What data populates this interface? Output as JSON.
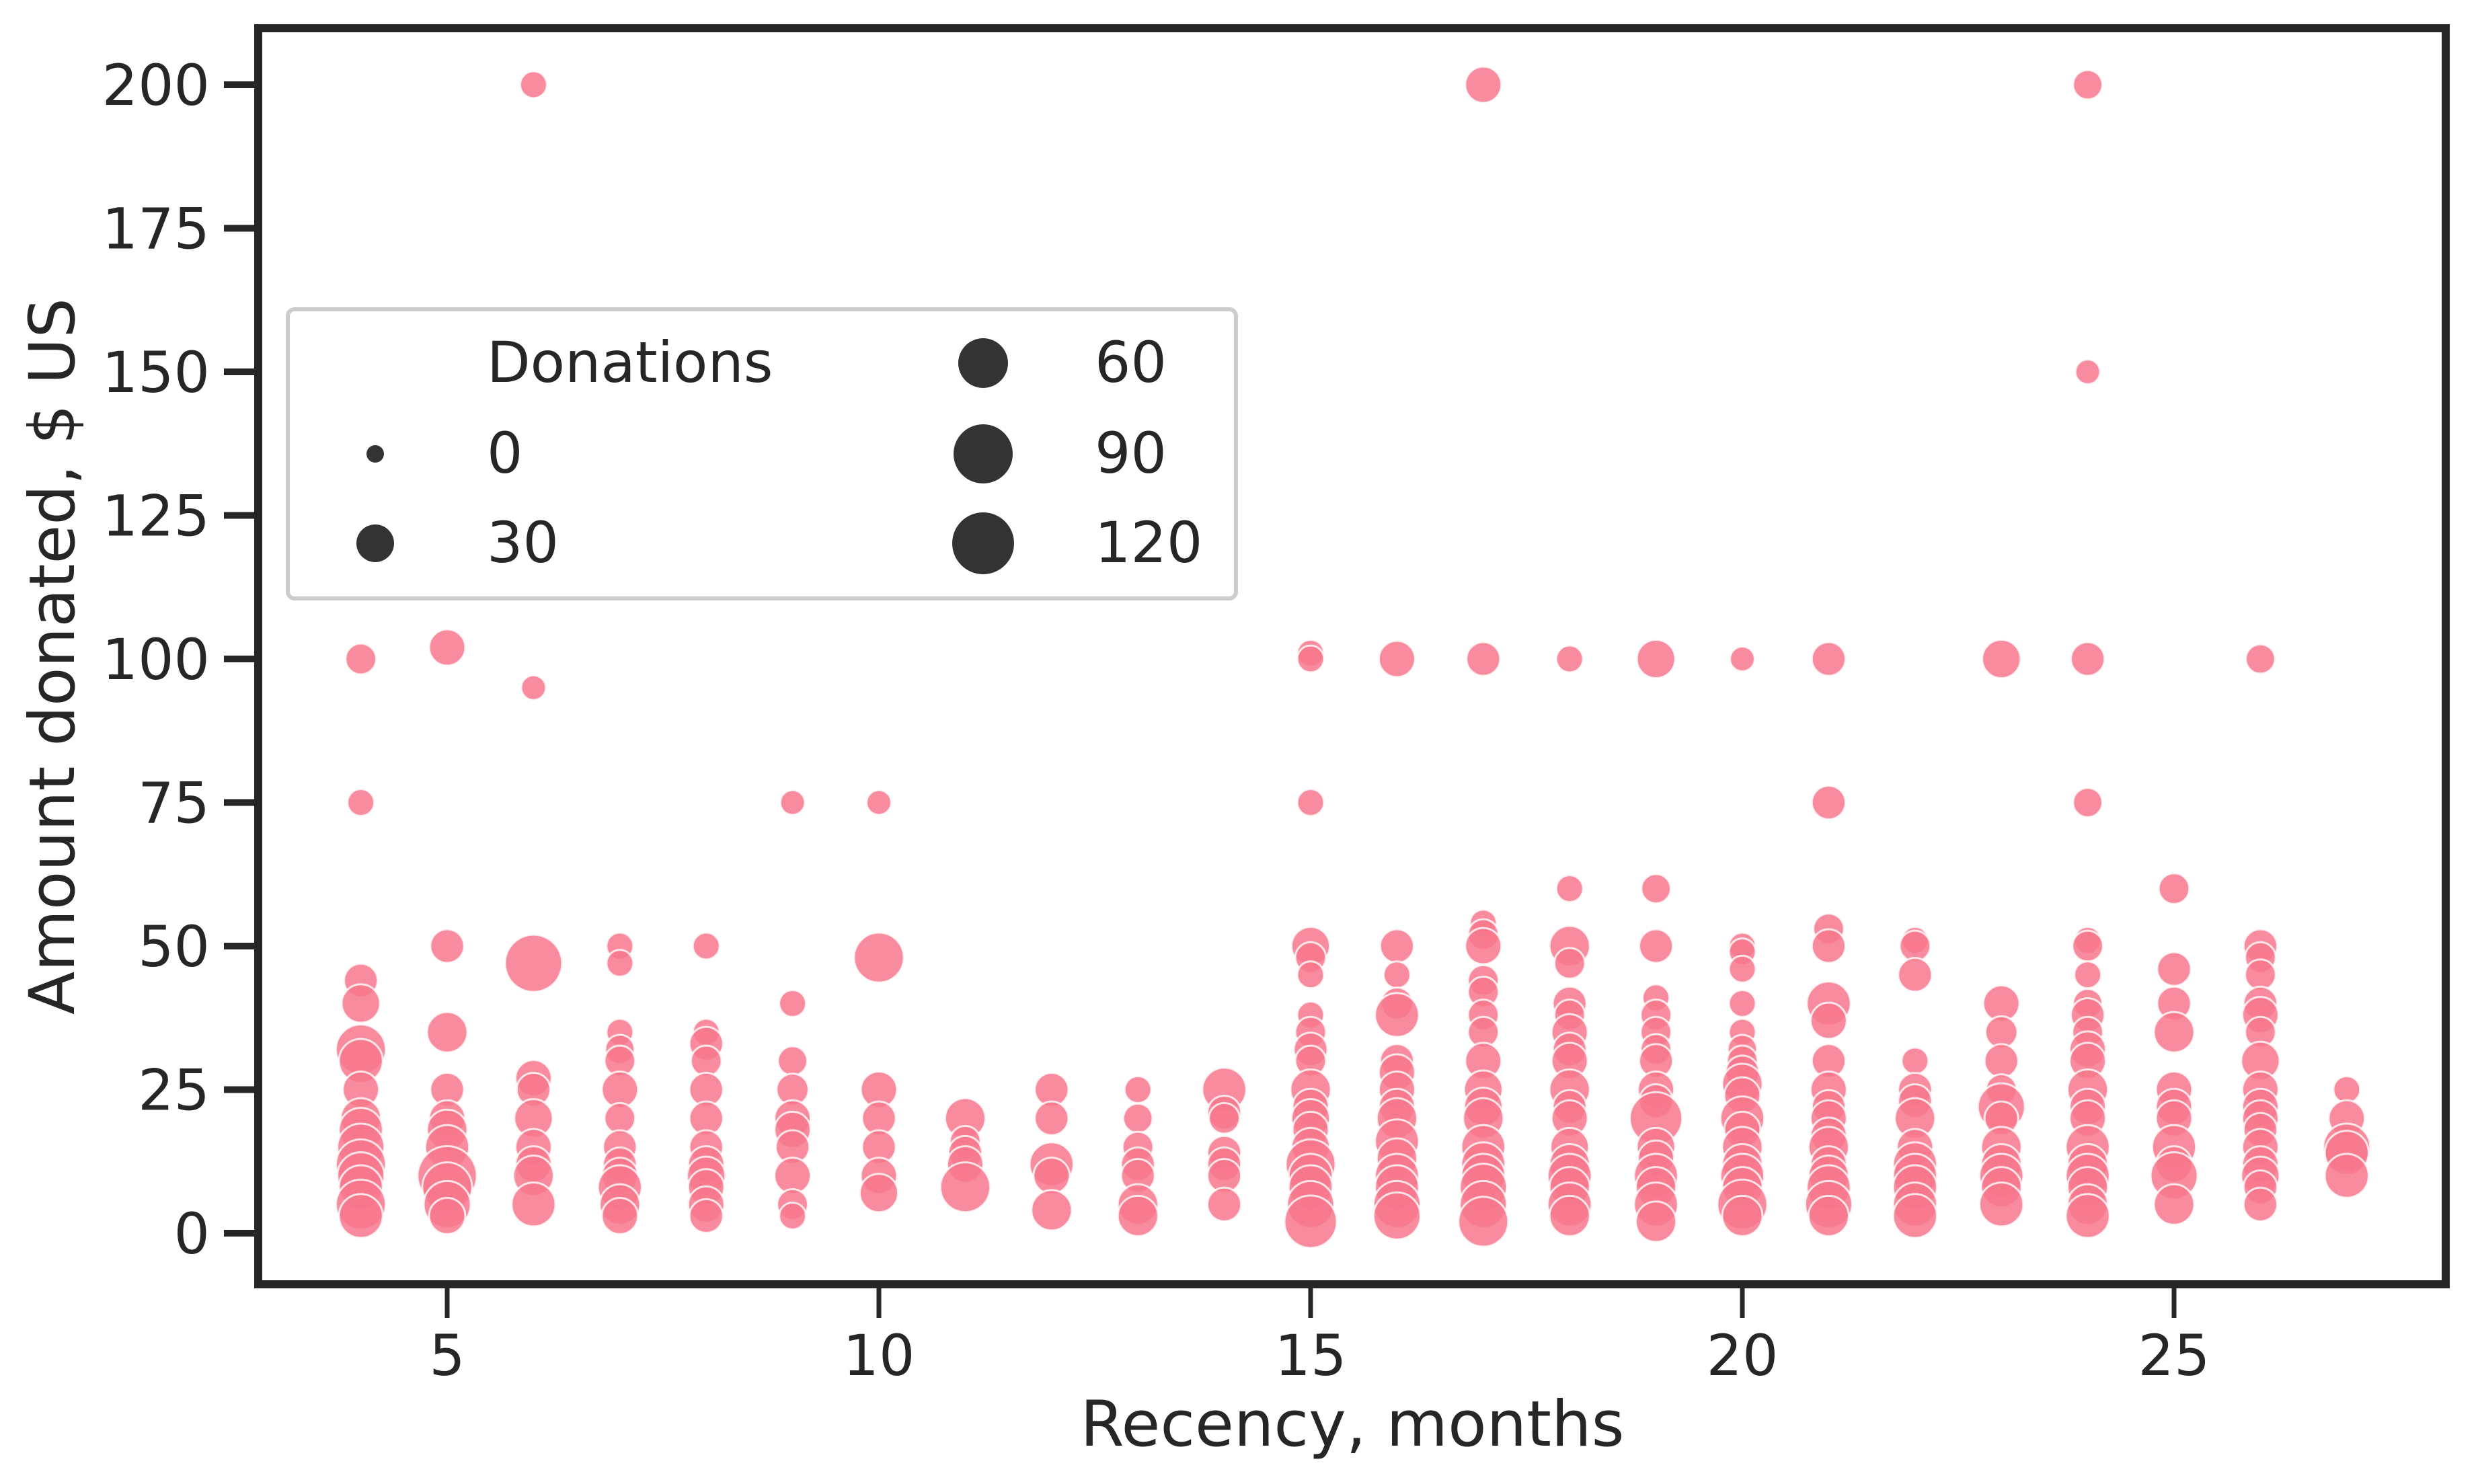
{
  "chart_data": {
    "type": "scatter",
    "title": "",
    "xlabel": "Recency, months",
    "ylabel": "Amount donated, $ US",
    "xlim": [
      2.8,
      28.2
    ],
    "ylim": [
      -8.5,
      210
    ],
    "xticks": [
      5,
      10,
      15,
      20,
      25
    ],
    "yticks": [
      0,
      25,
      50,
      75,
      100,
      125,
      150,
      175,
      200
    ],
    "grid": false,
    "point_color": "#f7778c",
    "point_edge_color": "#ffffff",
    "size_variable": "Donations",
    "legend": {
      "title": "Donations",
      "position": "upper left (inside, mid-height)",
      "columns": 2,
      "entries": [
        {
          "label": "0",
          "size": 0
        },
        {
          "label": "30",
          "size": 30
        },
        {
          "label": "60",
          "size": 60
        },
        {
          "label": "90",
          "size": 90
        },
        {
          "label": "120",
          "size": 120
        }
      ]
    },
    "columns": [
      "recency_months",
      "amount_usd",
      "donations"
    ],
    "points": [
      [
        4,
        100,
        10
      ],
      [
        4,
        75,
        5
      ],
      [
        4,
        44,
        15
      ],
      [
        4,
        40,
        25
      ],
      [
        4,
        32,
        60
      ],
      [
        4,
        30,
        40
      ],
      [
        4,
        25,
        20
      ],
      [
        4,
        20,
        30
      ],
      [
        4,
        18,
        40
      ],
      [
        4,
        15,
        50
      ],
      [
        4,
        12,
        60
      ],
      [
        4,
        10,
        50
      ],
      [
        4,
        8,
        40
      ],
      [
        4,
        5,
        60
      ],
      [
        4,
        3,
        40
      ],
      [
        5,
        102,
        20
      ],
      [
        5,
        50,
        15
      ],
      [
        5,
        35,
        30
      ],
      [
        5,
        25,
        15
      ],
      [
        5,
        20,
        20
      ],
      [
        5,
        18,
        30
      ],
      [
        5,
        15,
        40
      ],
      [
        5,
        10,
        100
      ],
      [
        5,
        8,
        60
      ],
      [
        5,
        5,
        50
      ],
      [
        5,
        3,
        20
      ],
      [
        6,
        200,
        5
      ],
      [
        6,
        95,
        3
      ],
      [
        6,
        47,
        90
      ],
      [
        6,
        27,
        20
      ],
      [
        6,
        25,
        15
      ],
      [
        6,
        20,
        25
      ],
      [
        6,
        15,
        20
      ],
      [
        6,
        12,
        20
      ],
      [
        6,
        10,
        30
      ],
      [
        6,
        5,
        40
      ],
      [
        7,
        50,
        5
      ],
      [
        7,
        47,
        5
      ],
      [
        7,
        35,
        5
      ],
      [
        7,
        32,
        8
      ],
      [
        7,
        30,
        10
      ],
      [
        7,
        25,
        20
      ],
      [
        7,
        20,
        10
      ],
      [
        7,
        15,
        15
      ],
      [
        7,
        12,
        15
      ],
      [
        7,
        10,
        20
      ],
      [
        7,
        8,
        40
      ],
      [
        7,
        5,
        30
      ],
      [
        7,
        3,
        20
      ],
      [
        8,
        50,
        5
      ],
      [
        8,
        35,
        5
      ],
      [
        8,
        33,
        15
      ],
      [
        8,
        30,
        10
      ],
      [
        8,
        25,
        15
      ],
      [
        8,
        20,
        15
      ],
      [
        8,
        15,
        15
      ],
      [
        8,
        12,
        20
      ],
      [
        8,
        10,
        25
      ],
      [
        8,
        8,
        20
      ],
      [
        8,
        5,
        20
      ],
      [
        8,
        3,
        15
      ],
      [
        9,
        75,
        3
      ],
      [
        9,
        40,
        5
      ],
      [
        9,
        30,
        8
      ],
      [
        9,
        25,
        12
      ],
      [
        9,
        20,
        20
      ],
      [
        9,
        18,
        20
      ],
      [
        9,
        15,
        15
      ],
      [
        9,
        10,
        20
      ],
      [
        9,
        5,
        10
      ],
      [
        9,
        3,
        5
      ],
      [
        10,
        75,
        3
      ],
      [
        10,
        48,
        60
      ],
      [
        10,
        25,
        20
      ],
      [
        10,
        20,
        15
      ],
      [
        10,
        15,
        15
      ],
      [
        10,
        10,
        20
      ],
      [
        10,
        7,
        25
      ],
      [
        11,
        20,
        30
      ],
      [
        11,
        16,
        10
      ],
      [
        11,
        14,
        15
      ],
      [
        11,
        12,
        20
      ],
      [
        11,
        8,
        60
      ],
      [
        12,
        25,
        15
      ],
      [
        12,
        20,
        15
      ],
      [
        12,
        12,
        40
      ],
      [
        12,
        10,
        20
      ],
      [
        12,
        4,
        30
      ],
      [
        13,
        25,
        5
      ],
      [
        13,
        20,
        8
      ],
      [
        13,
        15,
        10
      ],
      [
        13,
        12,
        15
      ],
      [
        13,
        10,
        15
      ],
      [
        13,
        5,
        30
      ],
      [
        13,
        3,
        30
      ],
      [
        14,
        25,
        40
      ],
      [
        14,
        21,
        15
      ],
      [
        14,
        20,
        10
      ],
      [
        14,
        14,
        15
      ],
      [
        14,
        12,
        15
      ],
      [
        14,
        10,
        15
      ],
      [
        14,
        5,
        15
      ],
      [
        15,
        101,
        5
      ],
      [
        15,
        100,
        5
      ],
      [
        15,
        75,
        5
      ],
      [
        15,
        50,
        25
      ],
      [
        15,
        48,
        10
      ],
      [
        15,
        45,
        5
      ],
      [
        15,
        38,
        5
      ],
      [
        15,
        35,
        10
      ],
      [
        15,
        32,
        15
      ],
      [
        15,
        30,
        10
      ],
      [
        15,
        25,
        30
      ],
      [
        15,
        22,
        20
      ],
      [
        15,
        20,
        25
      ],
      [
        15,
        18,
        20
      ],
      [
        15,
        15,
        25
      ],
      [
        15,
        12,
        60
      ],
      [
        15,
        10,
        40
      ],
      [
        15,
        8,
        40
      ],
      [
        15,
        5,
        50
      ],
      [
        15,
        2,
        70
      ],
      [
        16,
        100,
        20
      ],
      [
        16,
        50,
        15
      ],
      [
        16,
        45,
        5
      ],
      [
        16,
        40,
        12
      ],
      [
        16,
        38,
        40
      ],
      [
        16,
        30,
        15
      ],
      [
        16,
        28,
        20
      ],
      [
        16,
        25,
        20
      ],
      [
        16,
        22,
        20
      ],
      [
        16,
        20,
        30
      ],
      [
        16,
        16,
        40
      ],
      [
        16,
        13,
        30
      ],
      [
        16,
        10,
        40
      ],
      [
        16,
        8,
        40
      ],
      [
        16,
        5,
        50
      ],
      [
        16,
        3,
        50
      ],
      [
        17,
        200,
        20
      ],
      [
        17,
        100,
        15
      ],
      [
        17,
        54,
        5
      ],
      [
        17,
        52,
        10
      ],
      [
        17,
        50,
        20
      ],
      [
        17,
        44,
        10
      ],
      [
        17,
        42,
        10
      ],
      [
        17,
        38,
        10
      ],
      [
        17,
        35,
        10
      ],
      [
        17,
        30,
        20
      ],
      [
        17,
        25,
        25
      ],
      [
        17,
        22,
        25
      ],
      [
        17,
        20,
        30
      ],
      [
        17,
        15,
        40
      ],
      [
        17,
        12,
        40
      ],
      [
        17,
        10,
        40
      ],
      [
        17,
        8,
        50
      ],
      [
        17,
        5,
        50
      ],
      [
        17,
        2,
        60
      ],
      [
        18,
        100,
        5
      ],
      [
        18,
        60,
        5
      ],
      [
        18,
        50,
        30
      ],
      [
        18,
        47,
        10
      ],
      [
        18,
        40,
        15
      ],
      [
        18,
        38,
        10
      ],
      [
        18,
        35,
        20
      ],
      [
        18,
        32,
        15
      ],
      [
        18,
        30,
        20
      ],
      [
        18,
        25,
        30
      ],
      [
        18,
        22,
        15
      ],
      [
        18,
        20,
        20
      ],
      [
        18,
        15,
        25
      ],
      [
        18,
        12,
        30
      ],
      [
        18,
        10,
        40
      ],
      [
        18,
        8,
        30
      ],
      [
        18,
        5,
        40
      ],
      [
        18,
        3,
        30
      ],
      [
        19,
        100,
        25
      ],
      [
        19,
        60,
        8
      ],
      [
        19,
        50,
        15
      ],
      [
        19,
        41,
        5
      ],
      [
        19,
        38,
        10
      ],
      [
        19,
        35,
        10
      ],
      [
        19,
        32,
        10
      ],
      [
        19,
        30,
        15
      ],
      [
        19,
        25,
        20
      ],
      [
        19,
        23,
        15
      ],
      [
        19,
        20,
        70
      ],
      [
        19,
        15,
        25
      ],
      [
        19,
        13,
        20
      ],
      [
        19,
        10,
        40
      ],
      [
        19,
        8,
        30
      ],
      [
        19,
        5,
        40
      ],
      [
        19,
        2,
        30
      ],
      [
        20,
        100,
        3
      ],
      [
        20,
        50,
        5
      ],
      [
        20,
        49,
        5
      ],
      [
        20,
        46,
        5
      ],
      [
        20,
        40,
        5
      ],
      [
        20,
        35,
        5
      ],
      [
        20,
        32,
        8
      ],
      [
        20,
        30,
        10
      ],
      [
        20,
        28,
        15
      ],
      [
        20,
        26,
        30
      ],
      [
        20,
        24,
        20
      ],
      [
        20,
        20,
        40
      ],
      [
        20,
        18,
        20
      ],
      [
        20,
        15,
        30
      ],
      [
        20,
        12,
        30
      ],
      [
        20,
        10,
        40
      ],
      [
        20,
        8,
        30
      ],
      [
        20,
        5,
        60
      ],
      [
        20,
        3,
        30
      ],
      [
        21,
        100,
        15
      ],
      [
        21,
        75,
        15
      ],
      [
        21,
        53,
        10
      ],
      [
        21,
        50,
        15
      ],
      [
        21,
        40,
        40
      ],
      [
        21,
        37,
        20
      ],
      [
        21,
        30,
        15
      ],
      [
        21,
        25,
        20
      ],
      [
        21,
        22,
        15
      ],
      [
        21,
        20,
        20
      ],
      [
        21,
        17,
        20
      ],
      [
        21,
        15,
        30
      ],
      [
        21,
        12,
        20
      ],
      [
        21,
        10,
        30
      ],
      [
        21,
        8,
        40
      ],
      [
        21,
        5,
        50
      ],
      [
        21,
        3,
        30
      ],
      [
        22,
        51,
        5
      ],
      [
        22,
        50,
        10
      ],
      [
        22,
        45,
        15
      ],
      [
        22,
        30,
        5
      ],
      [
        22,
        25,
        15
      ],
      [
        22,
        23,
        15
      ],
      [
        22,
        20,
        30
      ],
      [
        22,
        15,
        20
      ],
      [
        22,
        12,
        40
      ],
      [
        22,
        10,
        40
      ],
      [
        22,
        8,
        40
      ],
      [
        22,
        5,
        40
      ],
      [
        22,
        3,
        40
      ],
      [
        23,
        100,
        25
      ],
      [
        23,
        40,
        20
      ],
      [
        23,
        35,
        12
      ],
      [
        23,
        30,
        15
      ],
      [
        23,
        25,
        10
      ],
      [
        23,
        22,
        50
      ],
      [
        23,
        20,
        15
      ],
      [
        23,
        15,
        30
      ],
      [
        23,
        12,
        30
      ],
      [
        23,
        10,
        40
      ],
      [
        23,
        8,
        30
      ],
      [
        23,
        5,
        40
      ],
      [
        24,
        200,
        8
      ],
      [
        24,
        150,
        3
      ],
      [
        24,
        100,
        15
      ],
      [
        24,
        75,
        8
      ],
      [
        24,
        51,
        5
      ],
      [
        24,
        50,
        10
      ],
      [
        24,
        45,
        5
      ],
      [
        24,
        40,
        8
      ],
      [
        24,
        38,
        15
      ],
      [
        24,
        35,
        10
      ],
      [
        24,
        32,
        20
      ],
      [
        24,
        30,
        20
      ],
      [
        24,
        25,
        30
      ],
      [
        24,
        22,
        20
      ],
      [
        24,
        20,
        20
      ],
      [
        24,
        15,
        40
      ],
      [
        24,
        12,
        30
      ],
      [
        24,
        10,
        40
      ],
      [
        24,
        8,
        30
      ],
      [
        24,
        5,
        30
      ],
      [
        24,
        3,
        40
      ],
      [
        25,
        60,
        10
      ],
      [
        25,
        46,
        15
      ],
      [
        25,
        40,
        15
      ],
      [
        25,
        35,
        30
      ],
      [
        25,
        25,
        20
      ],
      [
        25,
        22,
        20
      ],
      [
        25,
        20,
        20
      ],
      [
        25,
        15,
        40
      ],
      [
        25,
        12,
        20
      ],
      [
        25,
        10,
        50
      ],
      [
        25,
        5,
        30
      ],
      [
        26,
        100,
        8
      ],
      [
        26,
        50,
        15
      ],
      [
        26,
        48,
        10
      ],
      [
        26,
        45,
        10
      ],
      [
        26,
        40,
        15
      ],
      [
        26,
        38,
        20
      ],
      [
        26,
        35,
        10
      ],
      [
        26,
        30,
        25
      ],
      [
        26,
        25,
        20
      ],
      [
        26,
        22,
        20
      ],
      [
        26,
        20,
        20
      ],
      [
        26,
        18,
        15
      ],
      [
        26,
        15,
        20
      ],
      [
        26,
        12,
        20
      ],
      [
        26,
        10,
        25
      ],
      [
        26,
        8,
        15
      ],
      [
        26,
        5,
        15
      ],
      [
        27,
        25,
        5
      ],
      [
        27,
        20,
        20
      ],
      [
        27,
        15,
        50
      ],
      [
        27,
        14,
        40
      ],
      [
        27,
        10,
        40
      ]
    ]
  }
}
